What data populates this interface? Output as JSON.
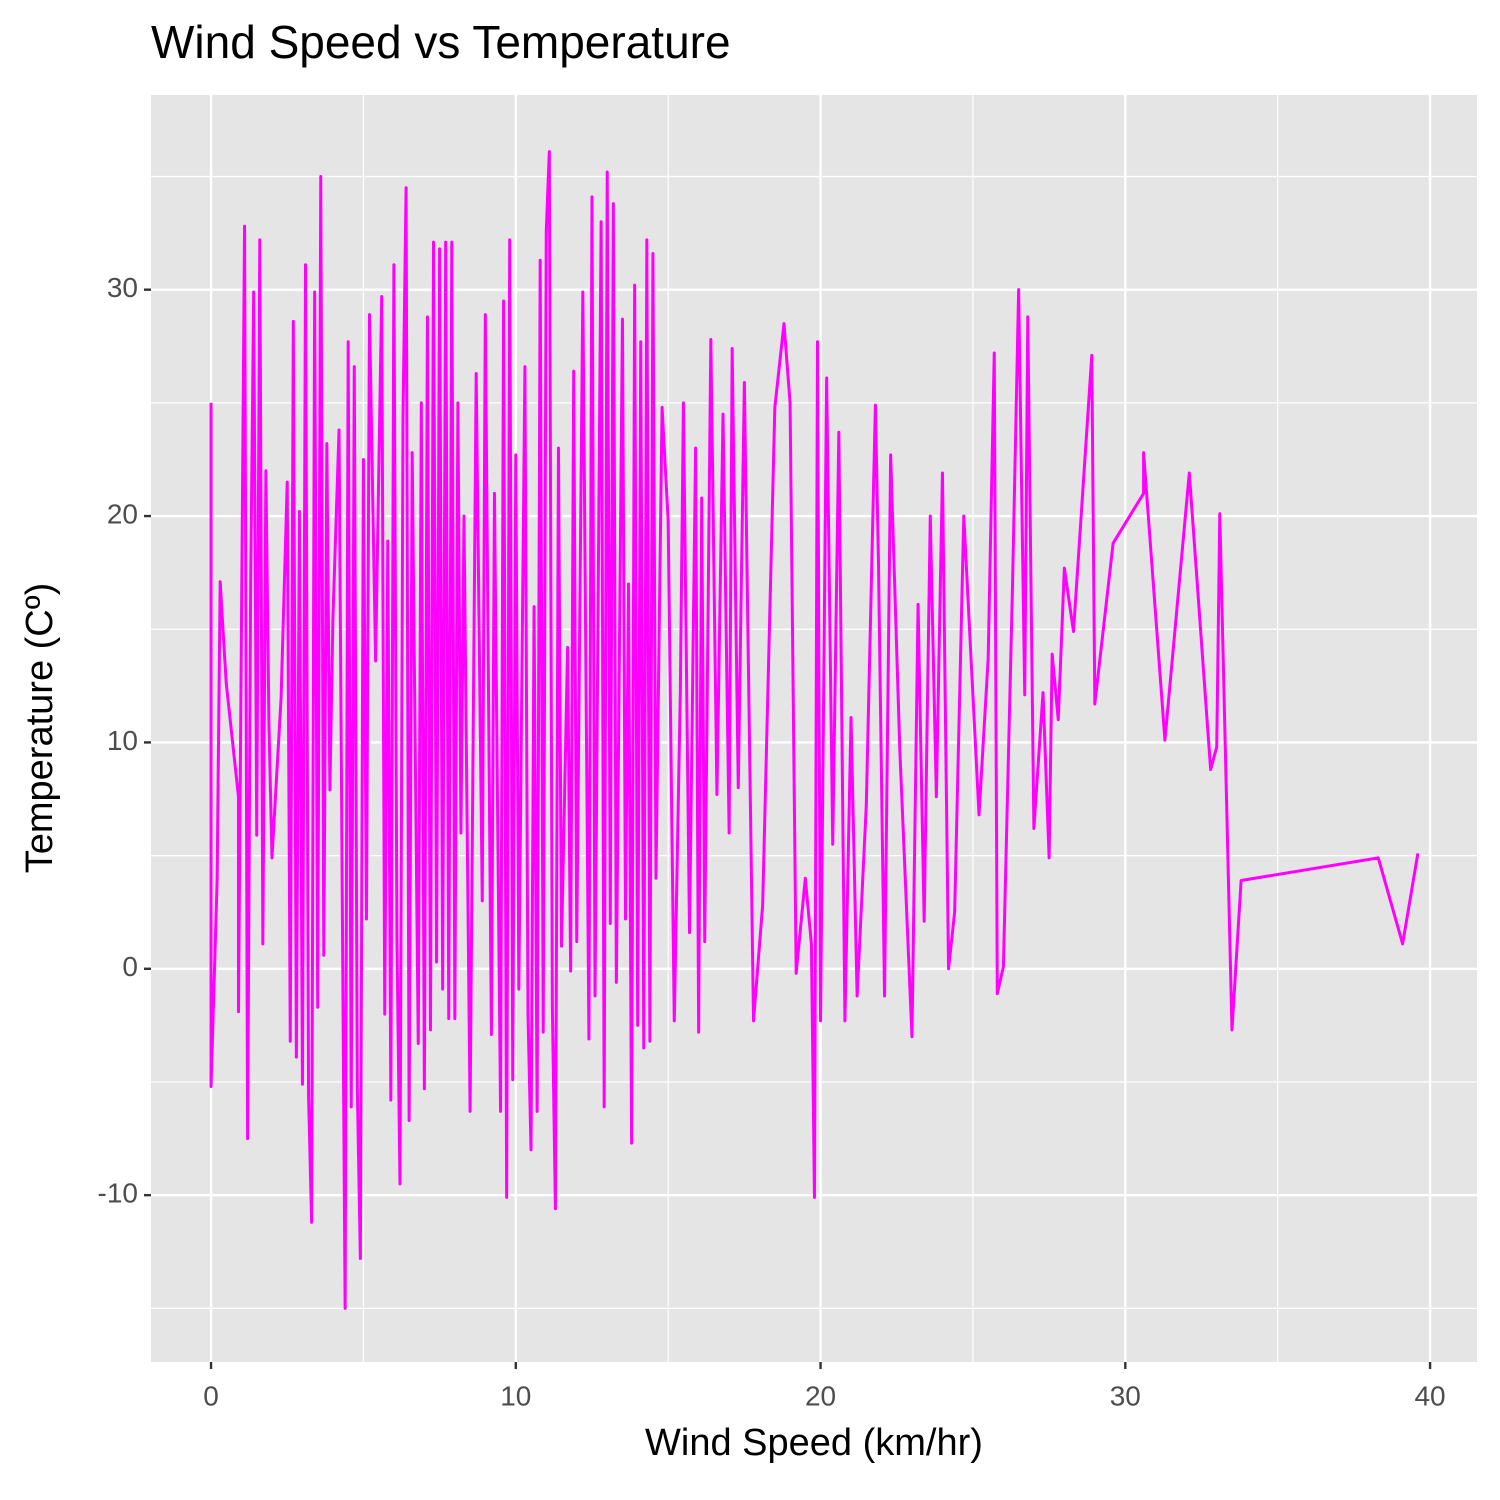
{
  "chart_data": {
    "type": "line",
    "title": "Wind Speed vs Temperature",
    "x_label": "Wind Speed (km/hr)",
    "y_label": "Temperature (Cº)",
    "color": "#ff00ff",
    "grid": true,
    "xlim": [
      -1.97,
      41.54
    ],
    "ylim": [
      -17.37,
      38.6
    ],
    "xticks": [
      0,
      10,
      20,
      30,
      40
    ],
    "yticks": [
      -10,
      0,
      10,
      20,
      30
    ],
    "x": [
      0,
      0,
      0.2,
      0.3,
      0.4,
      0.5,
      0.9,
      0.9,
      1.1,
      1.2,
      1.3,
      1.4,
      1.5,
      1.6,
      1.7,
      1.8,
      1.9,
      2.0,
      2.3,
      2.5,
      2.6,
      2.7,
      2.8,
      2.9,
      3.0,
      3.1,
      3.2,
      3.3,
      3.4,
      3.5,
      3.6,
      3.7,
      3.8,
      3.9,
      4.0,
      4.2,
      4.4,
      4.5,
      4.6,
      4.7,
      4.8,
      4.9,
      5.0,
      5.1,
      5.2,
      5.4,
      5.6,
      5.7,
      5.8,
      5.9,
      6.0,
      6.1,
      6.2,
      6.3,
      6.4,
      6.5,
      6.6,
      6.8,
      6.9,
      7.0,
      7.1,
      7.2,
      7.3,
      7.4,
      7.5,
      7.6,
      7.7,
      7.8,
      7.9,
      8.0,
      8.1,
      8.2,
      8.3,
      8.5,
      8.7,
      8.9,
      9.0,
      9.2,
      9.3,
      9.5,
      9.6,
      9.7,
      9.8,
      9.9,
      10.0,
      10.1,
      10.3,
      10.4,
      10.5,
      10.6,
      10.7,
      10.8,
      10.9,
      11.0,
      11.1,
      11.2,
      11.3,
      11.4,
      11.5,
      11.7,
      11.8,
      11.9,
      12.0,
      12.2,
      12.4,
      12.5,
      12.6,
      12.8,
      12.9,
      13.0,
      13.1,
      13.2,
      13.3,
      13.5,
      13.6,
      13.7,
      13.8,
      13.9,
      14.0,
      14.1,
      14.2,
      14.3,
      14.4,
      14.5,
      14.6,
      14.8,
      15.0,
      15.2,
      15.4,
      15.5,
      15.7,
      15.9,
      16.0,
      16.1,
      16.2,
      16.4,
      16.6,
      16.8,
      17.0,
      17.1,
      17.3,
      17.5,
      17.8,
      18.1,
      18.5,
      18.8,
      19.0,
      19.2,
      19.5,
      19.7,
      19.8,
      19.9,
      20.0,
      20.2,
      20.4,
      20.6,
      20.8,
      21.0,
      21.2,
      21.5,
      21.8,
      21.9,
      22.1,
      22.3,
      22.6,
      23.0,
      23.2,
      23.4,
      23.6,
      23.8,
      24.0,
      24.2,
      24.4,
      24.7,
      25.2,
      25.5,
      25.7,
      25.8,
      26.0,
      26.3,
      26.5,
      26.7,
      26.8,
      27.0,
      27.3,
      27.5,
      27.6,
      27.8,
      28,
      28.3,
      28.9,
      29,
      29.6,
      30.6,
      30.6,
      31.3,
      32.1,
      32.8,
      33,
      33.1,
      33.5,
      33.8,
      38.3,
      39.1,
      39.6
    ],
    "values": [
      25,
      -5.2,
      3.9,
      17.1,
      14.8,
      12.6,
      7.6,
      -1.9,
      32.8,
      -7.5,
      17,
      29.9,
      5.9,
      32.2,
      1.1,
      22,
      10.8,
      4.9,
      12,
      21.5,
      -3.2,
      28.6,
      -3.9,
      20.2,
      -5.1,
      31.1,
      -5.6,
      -11.2,
      29.9,
      -1.7,
      35,
      0.6,
      23.2,
      7.9,
      15.5,
      23.8,
      -15,
      27.7,
      -6.1,
      26.6,
      -5.3,
      -12.8,
      22.5,
      2.2,
      28.9,
      13.6,
      29.7,
      -2,
      18.9,
      -5.8,
      31.1,
      1.4,
      -9.5,
      24.4,
      34.5,
      -6.7,
      22.8,
      -3.3,
      25,
      -5.3,
      28.8,
      -2.7,
      32.1,
      0.3,
      31.8,
      -0.9,
      32.1,
      -2.2,
      32.1,
      -2.2,
      25,
      6,
      20,
      -6.3,
      26.3,
      3,
      28.9,
      -2.9,
      21,
      -6.3,
      29.5,
      -10.1,
      32.2,
      -4.9,
      22.7,
      -0.9,
      26.6,
      -2,
      -8,
      16,
      -6.3,
      31.3,
      -2.8,
      32.6,
      36.1,
      -1.7,
      -10.6,
      23,
      1,
      14.2,
      -0.1,
      26.4,
      1.2,
      29.9,
      -3.1,
      34.1,
      -1.2,
      33,
      -6.1,
      35.2,
      2,
      33.8,
      -0.6,
      28.7,
      2.2,
      17,
      -7.7,
      30.2,
      -2.5,
      27.7,
      -3.5,
      32.2,
      -3.2,
      31.6,
      4,
      24.8,
      19.8,
      -2.3,
      12.3,
      25,
      1.6,
      23,
      -2.8,
      20.8,
      1.2,
      27.8,
      7.7,
      24.5,
      6,
      27.4,
      8,
      25.9,
      -2.3,
      2.8,
      24.8,
      28.5,
      25,
      -0.2,
      4,
      1.1,
      -10.1,
      27.7,
      -2.3,
      26.1,
      5.5,
      23.7,
      -2.3,
      11.1,
      -1.2,
      7.2,
      24.9,
      18,
      -1.2,
      22.7,
      9.7,
      -3,
      16.1,
      2.1,
      20,
      7.6,
      21.9,
      0,
      2.5,
      20,
      6.8,
      13.7,
      27.2,
      -1.1,
      0.1,
      17,
      30,
      12.1,
      28.8,
      6.2,
      12.2,
      4.9,
      13.9,
      11,
      17.7,
      14.9,
      27.1,
      11.7,
      18.8,
      21,
      22.8,
      10.1,
      21.9,
      8.8,
      9.8,
      20.1,
      -2.7,
      3.9,
      4.9,
      1.1,
      5.1
    ]
  }
}
